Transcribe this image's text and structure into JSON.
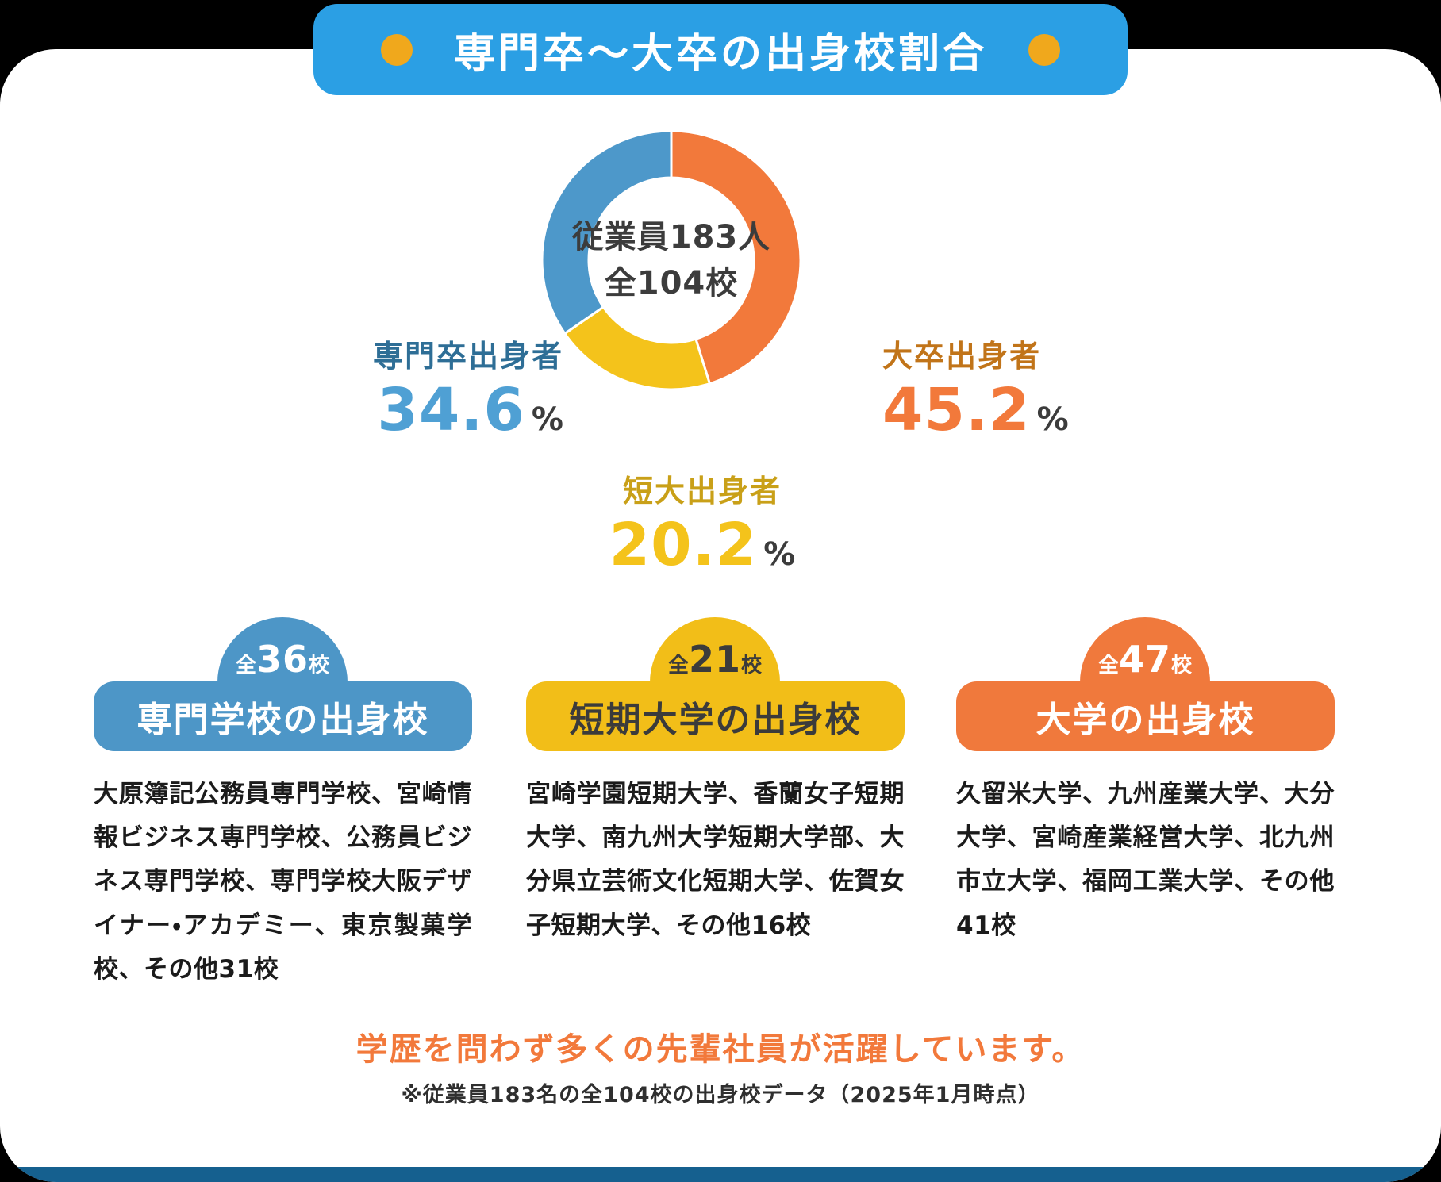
{
  "banner": {
    "title": "専門卒～大卒の出身校割合",
    "bg_color": "#2B9FE4",
    "dot_color": "#F0A81C"
  },
  "chart_data": {
    "type": "pie",
    "variant": "donut",
    "title": "専門卒～大卒の出身校割合",
    "center_label": {
      "line1": "従業員183人",
      "line2": "全104校"
    },
    "start_angle_deg": 0,
    "direction": "clockwise",
    "total": 100,
    "series": [
      {
        "key": "univ",
        "name": "大卒出身者",
        "value": 45.2,
        "unit": "%",
        "color": "#F2793B",
        "label_color": "#C17419",
        "number_color": "#F2793B"
      },
      {
        "key": "jc",
        "name": "短大出身者",
        "value": 20.2,
        "unit": "%",
        "color": "#F4C31B",
        "label_color": "#C9A018",
        "number_color": "#F4C31B"
      },
      {
        "key": "voc",
        "name": "専門卒出身者",
        "value": 34.6,
        "unit": "%",
        "color": "#4D98CA",
        "label_color": "#2E6E96",
        "number_color": "#4FA0D4"
      }
    ]
  },
  "cards": [
    {
      "badge_prefix": "全",
      "badge_count": "36",
      "badge_suffix": "校",
      "title": "専門学校の出身校",
      "body": "大原簿記公務員専門学校、宮崎情報ビジネス専門学校、公務員ビジネス専門学校、専門学校大阪デザイナー・アカデミー、東京製菓学校、その他31校",
      "color": "#4D96C7",
      "text_color": "#FFFFFF"
    },
    {
      "badge_prefix": "全",
      "badge_count": "21",
      "badge_suffix": "校",
      "title": "短期大学の出身校",
      "body": "宮崎学園短期大学、香蘭女子短期大学、南九州大学短期大学部、大分県立芸術文化短期大学、佐賀女子短期大学、その他16校",
      "color": "#F2BE18",
      "text_color": "#3B3B3B"
    },
    {
      "badge_prefix": "全",
      "badge_count": "47",
      "badge_suffix": "校",
      "title": "大学の出身校",
      "body": "久留米大学、九州産業大学、大分大学、宮崎産業経営大学、北九州市立大学、福岡工業大学、その他41校",
      "color": "#F0793C",
      "text_color": "#FFFFFF"
    }
  ],
  "footer": {
    "message": "学歴を問わず多くの先輩社員が活躍しています。",
    "note": "※従業員183名の全104校の出身校データ（2025年1月時点）",
    "strip_color": "#15608F"
  }
}
